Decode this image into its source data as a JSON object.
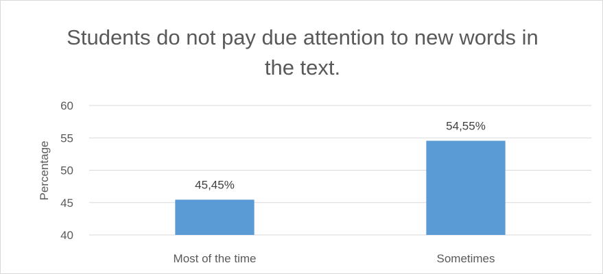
{
  "chart_data": {
    "type": "bar",
    "title": "Students do not pay due attention to new words in the text.",
    "xlabel": "",
    "ylabel": "Percentage",
    "categories": [
      "Most of the time",
      "Sometimes"
    ],
    "values": [
      45.45,
      54.55
    ],
    "data_labels": [
      "45,45%",
      "54,55%"
    ],
    "ylim": [
      40,
      60
    ],
    "yticks": [
      40,
      45,
      50,
      55,
      60
    ],
    "grid": true,
    "legend": "none",
    "bar_color": "#5b9bd5",
    "gridline_color": "#d9d9d9",
    "text_color": "#595959"
  }
}
